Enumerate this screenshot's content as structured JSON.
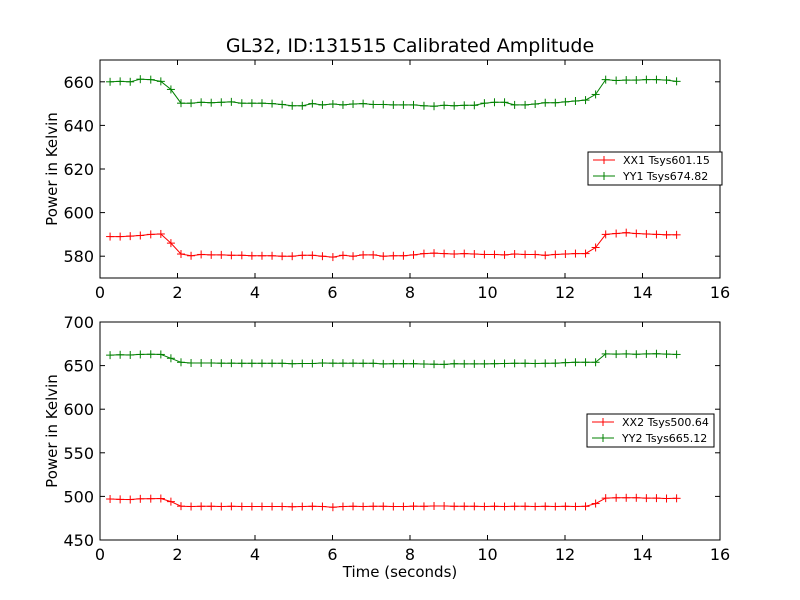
{
  "figure": {
    "title": "GL32, ID:131515 Calibrated Amplitude",
    "xlabel": "Time (seconds)",
    "ylabel": "Power in Kelvin"
  },
  "colors": {
    "red": "#ff0000",
    "green": "#008000"
  },
  "chart_data": [
    {
      "type": "line",
      "title": "GL32, ID:131515 Calibrated Amplitude",
      "xlabel": "",
      "ylabel": "Power in Kelvin",
      "xlim": [
        0,
        16
      ],
      "ylim": [
        570,
        670
      ],
      "xticks": [
        0,
        2,
        4,
        6,
        8,
        10,
        12,
        14,
        16
      ],
      "yticks": [
        580,
        600,
        620,
        640,
        660
      ],
      "legend_position": "center-right",
      "grid": false,
      "x": [
        0.26,
        0.52,
        0.78,
        1.04,
        1.31,
        1.57,
        1.83,
        2.09,
        2.35,
        2.61,
        2.87,
        3.13,
        3.39,
        3.66,
        3.92,
        4.18,
        4.44,
        4.7,
        4.96,
        5.22,
        5.48,
        5.74,
        6.01,
        6.27,
        6.53,
        6.79,
        7.05,
        7.31,
        7.57,
        7.83,
        8.09,
        8.36,
        8.62,
        8.88,
        9.14,
        9.4,
        9.66,
        9.92,
        10.18,
        10.44,
        10.7,
        10.97,
        11.23,
        11.49,
        11.75,
        12.01,
        12.27,
        12.53,
        12.79,
        13.05,
        13.32,
        13.58,
        13.84,
        14.1,
        14.36,
        14.62,
        14.88
      ],
      "series": [
        {
          "name": "XX1 Tsys601.15",
          "color": "#ff0000",
          "values": [
            589.0,
            589.0,
            589.2,
            589.5,
            590.0,
            590.2,
            586.0,
            581.0,
            580.2,
            580.8,
            580.6,
            580.6,
            580.4,
            580.4,
            580.2,
            580.2,
            580.2,
            580.0,
            580.0,
            580.4,
            580.4,
            580.0,
            579.6,
            580.4,
            580.0,
            580.6,
            580.6,
            580.0,
            580.2,
            580.2,
            580.6,
            581.2,
            581.4,
            581.2,
            581.0,
            581.2,
            581.0,
            580.8,
            580.8,
            580.6,
            581.0,
            580.8,
            580.8,
            580.4,
            580.8,
            581.0,
            581.2,
            581.2,
            584.0,
            590.0,
            590.4,
            590.8,
            590.4,
            590.2,
            590.0,
            589.8,
            589.8
          ]
        },
        {
          "name": "YY1 Tsys674.82",
          "color": "#008000",
          "values": [
            660.0,
            660.2,
            660.0,
            661.2,
            661.0,
            660.2,
            656.5,
            650.2,
            650.2,
            650.6,
            650.4,
            650.6,
            650.8,
            650.2,
            650.2,
            650.2,
            650.0,
            649.6,
            649.0,
            649.0,
            650.0,
            649.4,
            649.8,
            649.4,
            649.8,
            650.0,
            649.6,
            649.6,
            649.4,
            649.4,
            649.4,
            649.0,
            648.8,
            649.2,
            649.0,
            649.2,
            649.2,
            650.2,
            650.6,
            650.6,
            649.4,
            649.4,
            649.8,
            650.4,
            650.4,
            650.8,
            651.2,
            651.6,
            654.2,
            661.0,
            660.6,
            660.8,
            660.8,
            661.0,
            661.0,
            660.8,
            660.2
          ]
        }
      ]
    },
    {
      "type": "line",
      "title": "",
      "xlabel": "Time (seconds)",
      "ylabel": "Power in Kelvin",
      "xlim": [
        0,
        16
      ],
      "ylim": [
        450,
        700
      ],
      "xticks": [
        0,
        2,
        4,
        6,
        8,
        10,
        12,
        14,
        16
      ],
      "yticks": [
        450,
        500,
        550,
        600,
        650,
        700
      ],
      "legend_position": "center-right",
      "grid": false,
      "x": [
        0.26,
        0.52,
        0.78,
        1.04,
        1.31,
        1.57,
        1.83,
        2.09,
        2.35,
        2.61,
        2.87,
        3.13,
        3.39,
        3.66,
        3.92,
        4.18,
        4.44,
        4.7,
        4.96,
        5.22,
        5.48,
        5.74,
        6.01,
        6.27,
        6.53,
        6.79,
        7.05,
        7.31,
        7.57,
        7.83,
        8.09,
        8.36,
        8.62,
        8.88,
        9.14,
        9.4,
        9.66,
        9.92,
        10.18,
        10.44,
        10.7,
        10.97,
        11.23,
        11.49,
        11.75,
        12.01,
        12.27,
        12.53,
        12.79,
        13.05,
        13.32,
        13.58,
        13.84,
        14.1,
        14.36,
        14.62,
        14.88
      ],
      "series": [
        {
          "name": "XX2 Tsys500.64",
          "color": "#ff0000",
          "values": [
            497.0,
            496.6,
            496.4,
            497.2,
            497.4,
            497.6,
            494.0,
            488.8,
            488.4,
            488.6,
            488.6,
            488.4,
            488.6,
            488.4,
            488.4,
            488.4,
            488.4,
            488.4,
            488.2,
            488.4,
            488.6,
            488.4,
            487.6,
            488.4,
            488.6,
            488.4,
            488.6,
            488.6,
            488.4,
            488.4,
            488.8,
            488.6,
            489.0,
            489.0,
            488.6,
            488.6,
            488.6,
            488.4,
            488.6,
            488.4,
            488.6,
            488.6,
            488.4,
            488.6,
            488.4,
            488.6,
            488.4,
            488.6,
            491.8,
            498.0,
            498.4,
            498.4,
            498.4,
            498.0,
            498.0,
            497.6,
            497.8
          ]
        },
        {
          "name": "YY2 Tsys665.12",
          "color": "#008000",
          "values": [
            662.0,
            662.4,
            662.2,
            662.8,
            663.0,
            662.8,
            658.4,
            653.8,
            653.0,
            653.0,
            653.0,
            652.8,
            652.8,
            652.6,
            652.6,
            652.6,
            652.6,
            652.6,
            652.2,
            652.4,
            652.4,
            653.0,
            652.8,
            652.8,
            652.8,
            652.6,
            652.6,
            652.0,
            652.2,
            652.2,
            652.2,
            651.8,
            651.6,
            651.4,
            652.2,
            652.0,
            652.0,
            652.0,
            652.2,
            652.4,
            652.6,
            652.6,
            652.4,
            652.6,
            652.8,
            653.4,
            653.8,
            653.8,
            653.8,
            663.4,
            663.2,
            663.4,
            663.0,
            663.4,
            663.6,
            663.2,
            662.8
          ]
        }
      ]
    }
  ]
}
